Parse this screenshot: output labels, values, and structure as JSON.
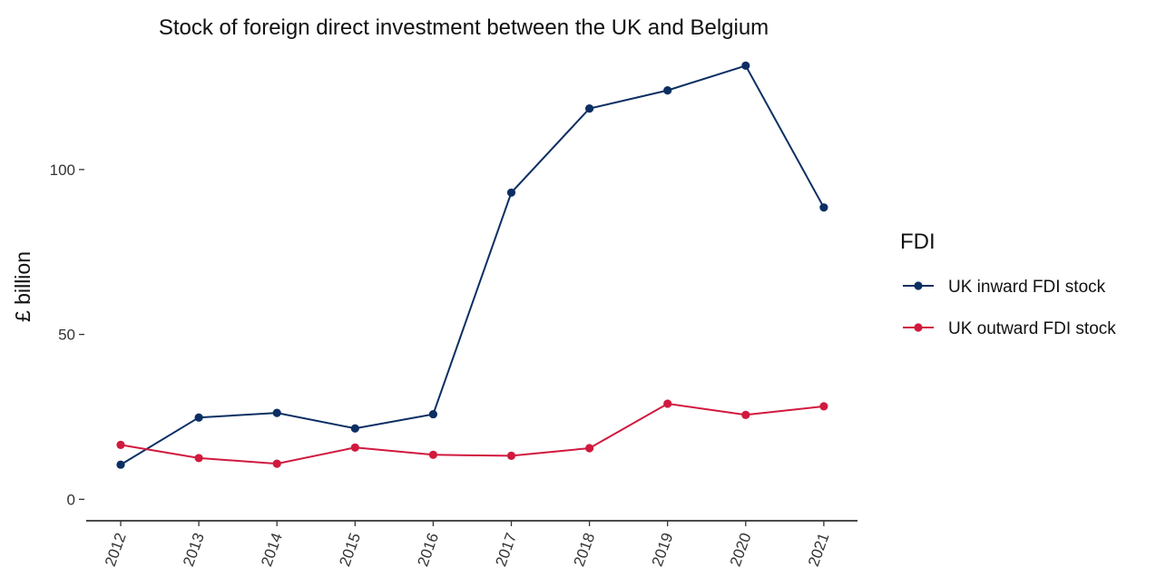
{
  "chart_data": {
    "type": "line",
    "title": "Stock of foreign direct investment between the UK and Belgium",
    "xlabel": "",
    "ylabel": "£ billion",
    "categories": [
      "2012",
      "2013",
      "2014",
      "2015",
      "2016",
      "2017",
      "2018",
      "2019",
      "2020",
      "2021"
    ],
    "yticks": [
      0,
      50,
      100
    ],
    "ylim": [
      -6.5,
      136
    ],
    "grid": false,
    "legend": {
      "title": "FDI",
      "placement": "right"
    },
    "series": [
      {
        "name": "UK inward FDI stock",
        "color": "#0b2f63",
        "values": [
          10.5,
          24.8,
          26.2,
          21.5,
          25.8,
          93,
          118.5,
          124,
          131.5,
          88.5
        ]
      },
      {
        "name": "UK outward FDI stock",
        "color": "#d1193e",
        "values": [
          16.5,
          12.5,
          10.8,
          15.7,
          13.5,
          13.2,
          15.5,
          29,
          25.6,
          28.2
        ]
      }
    ]
  }
}
